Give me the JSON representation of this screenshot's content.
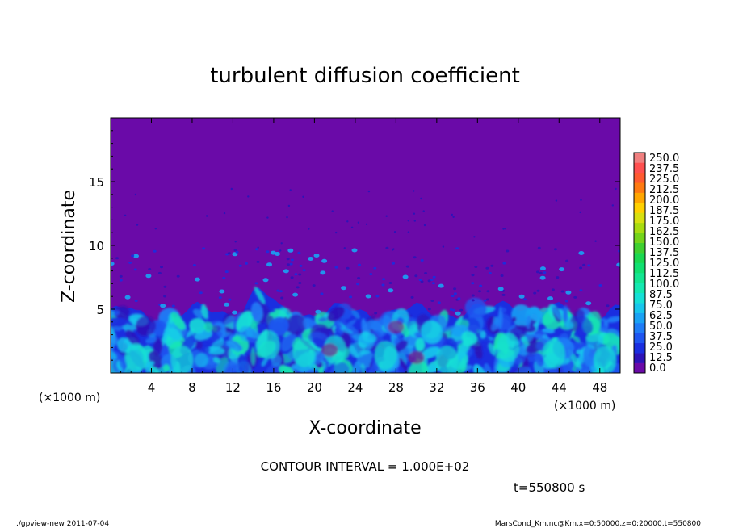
{
  "chart_data": {
    "type": "heatmap",
    "title": "turbulent diffusion coefficient",
    "xlabel": "X-coordinate",
    "ylabel": "Z-coordinate",
    "x_unit": "(×1000 m)",
    "y_unit": "(×1000 m)",
    "xlim": [
      0,
      50
    ],
    "ylim": [
      0,
      20
    ],
    "x_ticks": [
      4,
      8,
      12,
      16,
      20,
      24,
      28,
      32,
      36,
      40,
      44,
      48
    ],
    "y_ticks": [
      5,
      10,
      15
    ],
    "colorbar": {
      "levels": [
        0.0,
        12.5,
        25.0,
        37.5,
        50.0,
        62.5,
        75.0,
        87.5,
        100.0,
        112.5,
        125.0,
        137.5,
        150.0,
        162.5,
        175.0,
        187.5,
        200.0,
        212.5,
        225.0,
        237.5,
        250.0
      ],
      "labels": [
        "0.0",
        "12.5",
        "25.0",
        "37.5",
        "50.0",
        "62.5",
        "75.0",
        "87.5",
        "100.0",
        "112.5",
        "125.0",
        "137.5",
        "150.0",
        "162.5",
        "175.0",
        "187.5",
        "200.0",
        "212.5",
        "225.0",
        "237.5",
        "250.0"
      ],
      "colors": [
        "#6a0aa8",
        "#2d13b8",
        "#1a2ee0",
        "#1e55f0",
        "#1f7cf6",
        "#1aa2f4",
        "#17c6ec",
        "#15e0d6",
        "#14e8b0",
        "#12e590",
        "#10e070",
        "#1ad850",
        "#3fd030",
        "#74d41a",
        "#a8dc10",
        "#d8e010",
        "#ffd000",
        "#ffa600",
        "#ff7a10",
        "#ff5a30",
        "#ff5050",
        "#f08080"
      ]
    },
    "contour_interval": "CONTOUR INTERVAL = 1.000E+02",
    "time_label": "t=550800 s",
    "boundary_layer_top_approx": 4.8
  },
  "footer": {
    "left": "./gpview-new  2011-07-04",
    "right": "MarsCond_Km.nc@Km,x=0:50000,z=0:20000,t=550800"
  }
}
